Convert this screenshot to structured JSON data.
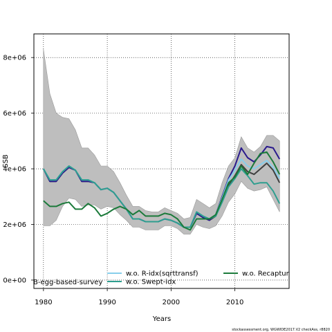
{
  "chart_data": {
    "type": "line",
    "xlabel": "Years",
    "ylabel": "SSB",
    "xlim": [
      1978.5,
      2018.5
    ],
    "ylim": [
      -300000,
      8850000
    ],
    "grid": true,
    "x_ticks": [
      1980,
      1990,
      2000,
      2010
    ],
    "x_tick_labels": [
      "1980",
      "1990",
      "2000",
      "2010"
    ],
    "y_ticks": [
      0,
      2000000,
      4000000,
      6000000,
      8000000
    ],
    "y_tick_labels": [
      "0e+00",
      "2e+06",
      "4e+06",
      "6e+06",
      "8e+06"
    ],
    "x": [
      1980,
      1981,
      1982,
      1983,
      1984,
      1985,
      1986,
      1987,
      1988,
      1989,
      1990,
      1991,
      1992,
      1993,
      1994,
      1995,
      1996,
      1997,
      1998,
      1999,
      2000,
      2001,
      2002,
      2003,
      2004,
      2005,
      2006,
      2007,
      2008,
      2009,
      2010,
      2011,
      2012,
      2013,
      2014,
      2015,
      2016,
      2017
    ],
    "confidence_band": {
      "color": "#bebebe",
      "upper": [
        8300000,
        6700000,
        6000000,
        5850000,
        5800000,
        5400000,
        4750000,
        4750000,
        4500000,
        4100000,
        4100000,
        3900000,
        3500000,
        3050000,
        2650000,
        2650000,
        2500000,
        2450000,
        2450000,
        2600000,
        2500000,
        2400000,
        2200000,
        2250000,
        2900000,
        2750000,
        2600000,
        2750000,
        3500000,
        4100000,
        4400000,
        5150000,
        4750000,
        4600000,
        4800000,
        5200000,
        5200000,
        5000000
      ],
      "lower": [
        1950000,
        1950000,
        2150000,
        2650000,
        2950000,
        2900000,
        2650000,
        2700000,
        2700000,
        2550000,
        2650000,
        2600000,
        2350000,
        2150000,
        1900000,
        1900000,
        1800000,
        1800000,
        1800000,
        1950000,
        1950000,
        1850000,
        1650000,
        1650000,
        2000000,
        1900000,
        1850000,
        1950000,
        2300000,
        2800000,
        3100000,
        3550000,
        3300000,
        3200000,
        3250000,
        3350000,
        2900000,
        2450000
      ]
    },
    "series": [
      {
        "color": "#3f3f3f",
        "values": [
          4000000,
          3550000,
          3550000,
          3850000,
          4050000,
          3950000,
          3550000,
          3550000,
          3500000,
          3250000,
          3300000,
          3150000,
          2850000,
          2550000,
          2200000,
          2200000,
          2100000,
          2100000,
          2100000,
          2200000,
          2150000,
          2050000,
          1900000,
          1900000,
          2400000,
          2250000,
          2150000,
          2300000,
          2850000,
          3400000,
          3750000,
          4150000,
          3900000,
          3800000,
          4000000,
          4200000,
          3950000,
          3500000
        ]
      },
      {
        "color": "#2a1a8c",
        "values": [
          4000000,
          3550000,
          3550000,
          3850000,
          4050000,
          3950000,
          3550000,
          3550000,
          3500000,
          3250000,
          3300000,
          3150000,
          2850000,
          2550000,
          2200000,
          2200000,
          2100000,
          2100000,
          2100000,
          2200000,
          2150000,
          2050000,
          1900000,
          1900000,
          2400000,
          2250000,
          2150000,
          2350000,
          3000000,
          3650000,
          4100000,
          4750000,
          4400000,
          4250000,
          4500000,
          4800000,
          4750000,
          4350000
        ]
      },
      {
        "name": "w.o. R-idx(sqrttransf)",
        "color": "#87ceeb",
        "values": [
          4000000,
          3600000,
          3600000,
          3900000,
          4100000,
          3950000,
          3600000,
          3600000,
          3500000,
          3250000,
          3300000,
          3150000,
          2850000,
          2550000,
          2200000,
          2200000,
          2100000,
          2100000,
          2100000,
          2200000,
          2150000,
          2050000,
          1900000,
          1900000,
          2450000,
          2300000,
          2200000,
          2350000,
          2950000,
          3600000,
          3950000,
          4350000,
          4100000,
          4000000,
          4150000,
          4300000,
          4050000,
          3650000
        ]
      },
      {
        "name": "w.o. Swept-idx",
        "color": "#2e9e8f",
        "values": [
          4000000,
          3600000,
          3600000,
          3900000,
          4100000,
          3950000,
          3600000,
          3600000,
          3500000,
          3250000,
          3300000,
          3150000,
          2850000,
          2550000,
          2200000,
          2200000,
          2100000,
          2100000,
          2100000,
          2200000,
          2150000,
          2050000,
          1900000,
          1900000,
          2450000,
          2300000,
          2200000,
          2300000,
          2800000,
          3350000,
          3650000,
          4000000,
          3750000,
          3450000,
          3500000,
          3500000,
          3200000,
          2750000
        ]
      },
      {
        "name": "w.o. Recaptur",
        "color": "#1b7a3a",
        "values": [
          2850000,
          2650000,
          2650000,
          2750000,
          2800000,
          2550000,
          2550000,
          2750000,
          2600000,
          2300000,
          2400000,
          2550000,
          2650000,
          2550000,
          2350000,
          2500000,
          2300000,
          2300000,
          2300000,
          2400000,
          2350000,
          2200000,
          1900000,
          1800000,
          2200000,
          2200000,
          2200000,
          2350000,
          2900000,
          3500000,
          3700000,
          4100000,
          3800000,
          4200000,
          4550000,
          4600000,
          4250000,
          3800000
        ]
      }
    ],
    "legend_entries": [
      {
        "label": "w.o. R-idx(sqrttransf)",
        "color": "#87ceeb"
      },
      {
        "label": "w.o. Swept-idx",
        "color": "#2e9e8f"
      },
      {
        "label": "w.o. Recaptur",
        "color": "#1b7a3a"
      }
    ],
    "annotation": "B-egg-based-survey",
    "footer": "stockassessment.org, WGWIDE2017.V2  checkAss, r8820"
  }
}
